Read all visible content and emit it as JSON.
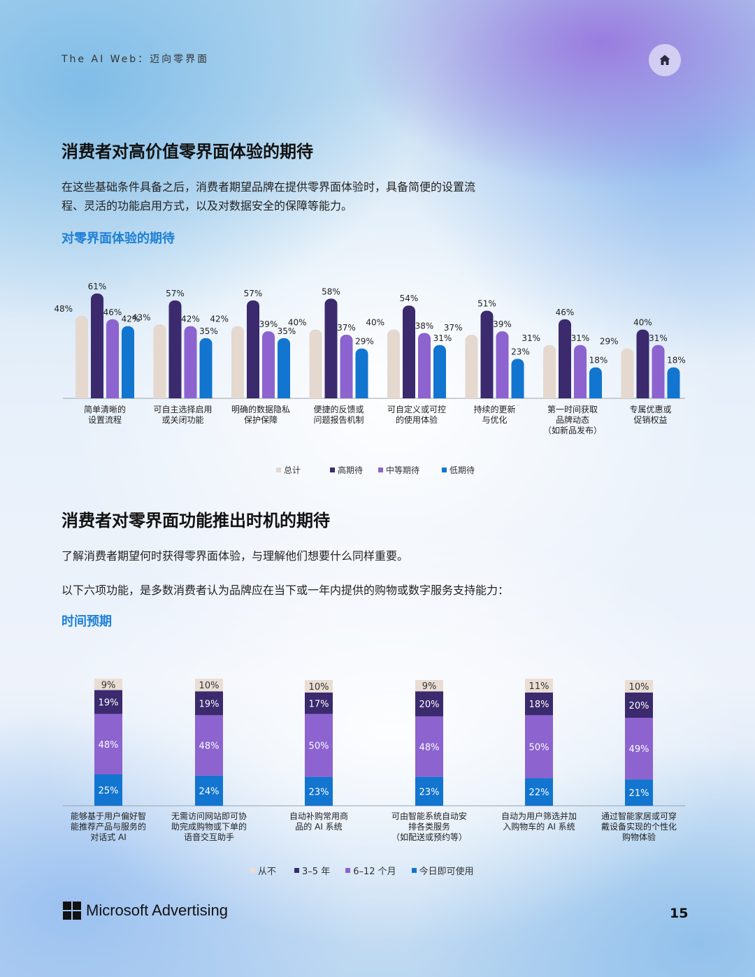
{
  "header": {
    "title": "The AI Web：迈向零界面",
    "home_icon": "home-icon"
  },
  "section1": {
    "title": "消费者对高价值零界面体验的期待",
    "paragraph_lines": [
      "在这些基础条件具备之后，消费者期望品牌在提供零界面体验时，具备简便的设置流",
      "程、灵活的功能启用方式，以及对数据安全的保障等能力。"
    ],
    "chart_title": "对零界面体验的期待"
  },
  "section2": {
    "title": "消费者对零界面功能推出时机的期待",
    "paragraph1": "了解消费者期望何时获得零界面体验，与理解他们想要什么同样重要。",
    "paragraph2": "以下六项功能，是多数消费者认为品牌应在当下或一年内提供的购物或数字服务支持能力：",
    "chart_title": "时间预期"
  },
  "colors": {
    "total": "#e4d8cf",
    "high": "#3b2a6e",
    "mid": "#8c63cf",
    "low": "#1275cf",
    "never": "#e9ddd4",
    "accent": "#1d7fd6"
  },
  "chart_data": [
    {
      "type": "bar",
      "title": "对零界面体验的期待",
      "categories": [
        [
          "简单清晰的",
          "设置流程"
        ],
        [
          "可自主选择启用",
          "或关闭功能"
        ],
        [
          "明确的数据隐私",
          "保护保障"
        ],
        [
          "便捷的反馈或",
          "问题报告机制"
        ],
        [
          "可自定义或可控",
          "的使用体验"
        ],
        [
          "持续的更新",
          "与优化"
        ],
        [
          "第一时间获取",
          "品牌动态",
          "（如新品发布）"
        ],
        [
          "专属优惠或",
          "促销权益"
        ]
      ],
      "series": [
        {
          "name": "总计",
          "values": [
            48,
            43,
            42,
            40,
            40,
            37,
            31,
            29
          ]
        },
        {
          "name": "高期待",
          "values": [
            61,
            57,
            57,
            58,
            54,
            51,
            46,
            40
          ]
        },
        {
          "name": "中等期待",
          "values": [
            46,
            42,
            39,
            37,
            38,
            39,
            31,
            31
          ]
        },
        {
          "name": "低期待",
          "values": [
            42,
            35,
            35,
            29,
            31,
            23,
            18,
            18
          ]
        }
      ],
      "ylim": [
        0,
        61
      ]
    },
    {
      "type": "bar",
      "stacked": true,
      "title": "时间预期",
      "categories": [
        [
          "能够基于用户偏好智",
          "能推荐产品与服务的",
          "对话式 AI"
        ],
        [
          "无需访问网站即可协",
          "助完成购物或下单的",
          "语音交互助手"
        ],
        [
          "自动补购常用商",
          "品的 AI 系统"
        ],
        [
          "可由智能系统自动安",
          "排各类服务",
          "（如配送或预约等）"
        ],
        [
          "自动为用户筛选并加",
          "入购物车的 AI 系统"
        ],
        [
          "通过智能家居或可穿",
          "戴设备实现的个性化",
          "购物体验"
        ]
      ],
      "series": [
        {
          "name": "今日即可使用",
          "values": [
            25,
            24,
            23,
            23,
            22,
            21
          ]
        },
        {
          "name": "6–12 个月",
          "values": [
            48,
            48,
            50,
            48,
            50,
            49
          ]
        },
        {
          "name": "3–5 年",
          "values": [
            19,
            19,
            17,
            20,
            18,
            20
          ]
        },
        {
          "name": "从不",
          "values": [
            9,
            10,
            10,
            9,
            11,
            10
          ]
        }
      ],
      "legend_order": [
        "从不",
        "3–5 年",
        "6–12 个月",
        "今日即可使用"
      ]
    }
  ],
  "footer": {
    "brand": "Microsoft Advertising",
    "page_number": "15"
  }
}
